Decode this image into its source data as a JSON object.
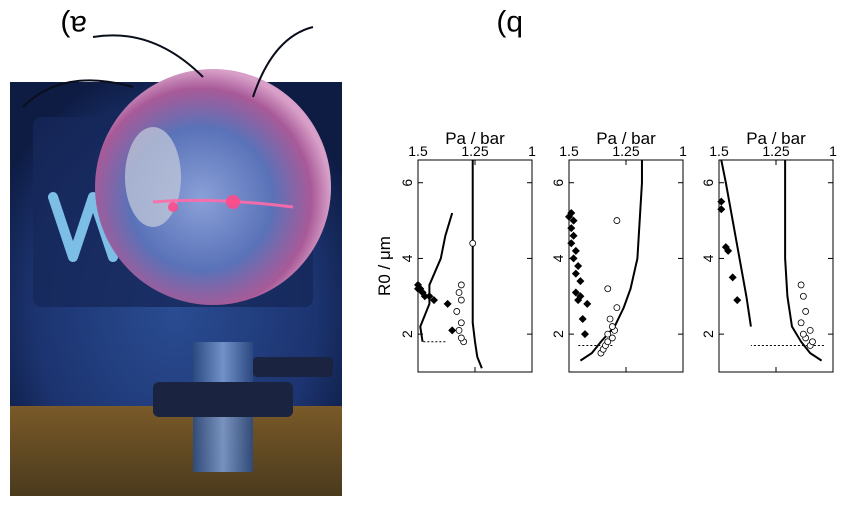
{
  "figure": {
    "panel_a_label": "a)",
    "panel_b_label": "b)"
  },
  "photo": {
    "description_icon": "glass-bulb-plasma-photo",
    "palette": {
      "background": "#1f3a78",
      "glow": "#b24a8a",
      "tube": "#4a6fa8",
      "floor": "#6a4a20"
    }
  },
  "chart_data": [
    {
      "type": "scatter",
      "xlabel": "R0 / μm",
      "ylabel": "Pa / bar",
      "x_ticks": [
        "2",
        "4",
        "6"
      ],
      "y_ticks": [
        "1",
        "1.25",
        "1.5"
      ],
      "xlim": [
        1,
        6.6
      ],
      "ylim": [
        1,
        1.5
      ],
      "curve": {
        "x": [
          1.3,
          1.5,
          1.8,
          2.2,
          3.0,
          4.0,
          5.0,
          6.0,
          6.6
        ],
        "y": [
          1.05,
          1.1,
          1.14,
          1.18,
          1.2,
          1.21,
          1.21,
          1.21,
          1.21
        ]
      },
      "curve2": {
        "x": [
          2.2,
          3.0,
          4.0,
          5.0,
          6.0,
          6.6
        ],
        "y": [
          1.36,
          1.38,
          1.41,
          1.44,
          1.47,
          1.49
        ]
      },
      "threshold": {
        "x": 1.7,
        "y": [
          1.04,
          1.36
        ]
      },
      "open_points": {
        "x": [
          1.7,
          1.8,
          1.9,
          2.0,
          2.1,
          2.3,
          2.6,
          3.0,
          3.3
        ],
        "y": [
          1.1,
          1.09,
          1.12,
          1.13,
          1.1,
          1.14,
          1.12,
          1.13,
          1.14
        ]
      },
      "filled_points": {
        "x": [
          2.9,
          3.5,
          4.2,
          4.3,
          5.3,
          5.5
        ],
        "y": [
          1.42,
          1.44,
          1.46,
          1.47,
          1.49,
          1.49
        ]
      }
    },
    {
      "type": "scatter",
      "xlabel": "R0 / μm",
      "ylabel": "Pa / bar",
      "x_ticks": [
        "2",
        "4",
        "6"
      ],
      "y_ticks": [
        "1",
        "1.25",
        "1.5"
      ],
      "xlim": [
        1,
        6.6
      ],
      "ylim": [
        1,
        1.5
      ],
      "curve": {
        "x": [
          1.3,
          1.5,
          1.8,
          2.2,
          2.7,
          3.2,
          4.0,
          5.0,
          6.0,
          6.6
        ],
        "y": [
          1.45,
          1.4,
          1.36,
          1.3,
          1.26,
          1.23,
          1.2,
          1.19,
          1.18,
          1.18
        ]
      },
      "threshold": {
        "x": 1.7,
        "y": [
          1.31,
          1.46
        ]
      },
      "open_points": {
        "x": [
          1.5,
          1.6,
          1.7,
          1.8,
          1.9,
          2.0,
          2.1,
          2.2,
          2.4,
          2.7,
          3.2,
          5.0
        ],
        "y": [
          1.36,
          1.35,
          1.34,
          1.33,
          1.31,
          1.33,
          1.3,
          1.31,
          1.32,
          1.29,
          1.33,
          1.29
        ]
      },
      "filled_points": {
        "x": [
          2.0,
          2.4,
          2.8,
          2.9,
          3.0,
          3.1,
          3.4,
          3.6,
          3.8,
          4.0,
          4.2,
          4.4,
          4.6,
          4.8,
          5.0,
          5.1,
          5.2
        ],
        "y": [
          1.43,
          1.44,
          1.42,
          1.46,
          1.45,
          1.47,
          1.45,
          1.47,
          1.46,
          1.48,
          1.47,
          1.49,
          1.48,
          1.49,
          1.48,
          1.5,
          1.49
        ]
      }
    },
    {
      "type": "scatter",
      "xlabel": "R0 / μm",
      "ylabel": "Pa / bar",
      "x_ticks": [
        "2",
        "4",
        "6"
      ],
      "y_ticks": [
        "1",
        "1.25",
        "1.5"
      ],
      "xlim": [
        1,
        6.6
      ],
      "ylim": [
        1,
        1.5
      ],
      "curve": {
        "x": [
          1.1,
          1.4,
          1.8,
          2.3,
          3.0,
          4.0,
          5.0,
          6.0,
          6.6
        ],
        "y": [
          1.22,
          1.24,
          1.25,
          1.26,
          1.26,
          1.26,
          1.26,
          1.26,
          1.26
        ]
      },
      "curve2": {
        "x": [
          1.8,
          2.2,
          2.8,
          3.3,
          4.0,
          4.6,
          5.2
        ],
        "y": [
          1.48,
          1.49,
          1.45,
          1.45,
          1.4,
          1.38,
          1.35
        ]
      },
      "threshold": {
        "x": 1.8,
        "y": [
          1.38,
          1.48
        ]
      },
      "open_points": {
        "x": [
          1.8,
          1.9,
          2.1,
          2.3,
          2.6,
          2.9,
          3.1,
          3.3,
          4.4
        ],
        "y": [
          1.3,
          1.31,
          1.32,
          1.31,
          1.33,
          1.31,
          1.32,
          1.31,
          1.26
        ]
      },
      "filled_points": {
        "x": [
          2.1,
          2.8,
          2.9,
          3.0,
          3.0,
          3.1,
          3.2,
          3.2,
          3.3
        ],
        "y": [
          1.35,
          1.37,
          1.43,
          1.45,
          1.47,
          1.48,
          1.5,
          1.49,
          1.5
        ]
      }
    }
  ]
}
